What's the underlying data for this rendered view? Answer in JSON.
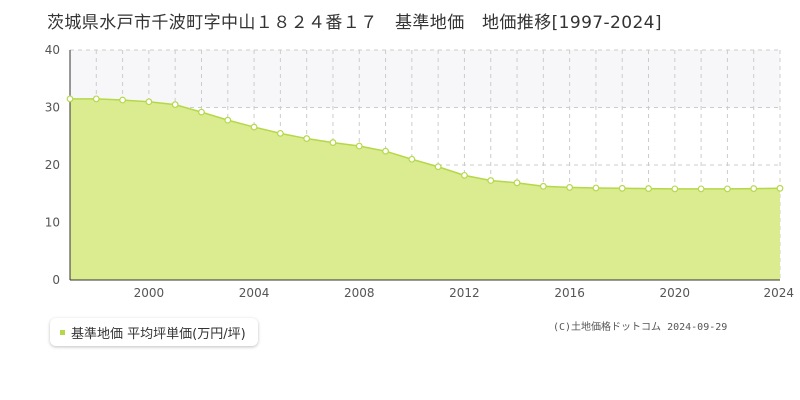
{
  "title": "茨城県水戸市千波町字中山１８２４番１７　基準地価　地価推移[1997-2024]",
  "legend": {
    "label": "基準地価 平均坪単価(万円/坪)"
  },
  "copyright": "(C)土地価格ドットコム 2024-09-29",
  "colors": {
    "fill": "#dbeb8f",
    "line": "#b5d84a",
    "marker_fill": "#ffffff",
    "grid": "#cccccc",
    "upper_band": "#f7f7fa"
  },
  "chart_data": {
    "type": "area",
    "title": "",
    "xlabel": "",
    "ylabel": "",
    "xlim": [
      1997,
      2024
    ],
    "ylim": [
      0,
      40
    ],
    "x_ticks": [
      "2000",
      "2004",
      "2008",
      "2012",
      "2016",
      "2020",
      "2024"
    ],
    "y_ticks": [
      "0",
      "10",
      "20",
      "30",
      "40"
    ],
    "grid": true,
    "legend_position": "bottom-left",
    "series": [
      {
        "name": "基準地価 平均坪単価(万円/坪)",
        "x": [
          1997,
          1998,
          1999,
          2000,
          2001,
          2002,
          2003,
          2004,
          2005,
          2006,
          2007,
          2008,
          2009,
          2010,
          2011,
          2012,
          2013,
          2014,
          2015,
          2016,
          2017,
          2018,
          2019,
          2020,
          2021,
          2022,
          2023,
          2024
        ],
        "values": [
          31.5,
          31.5,
          31.3,
          31.0,
          30.5,
          29.2,
          27.8,
          26.6,
          25.5,
          24.6,
          23.9,
          23.3,
          22.4,
          21.0,
          19.7,
          18.2,
          17.3,
          16.9,
          16.3,
          16.1,
          16.0,
          15.95,
          15.9,
          15.85,
          15.85,
          15.85,
          15.9,
          15.95
        ]
      }
    ]
  }
}
